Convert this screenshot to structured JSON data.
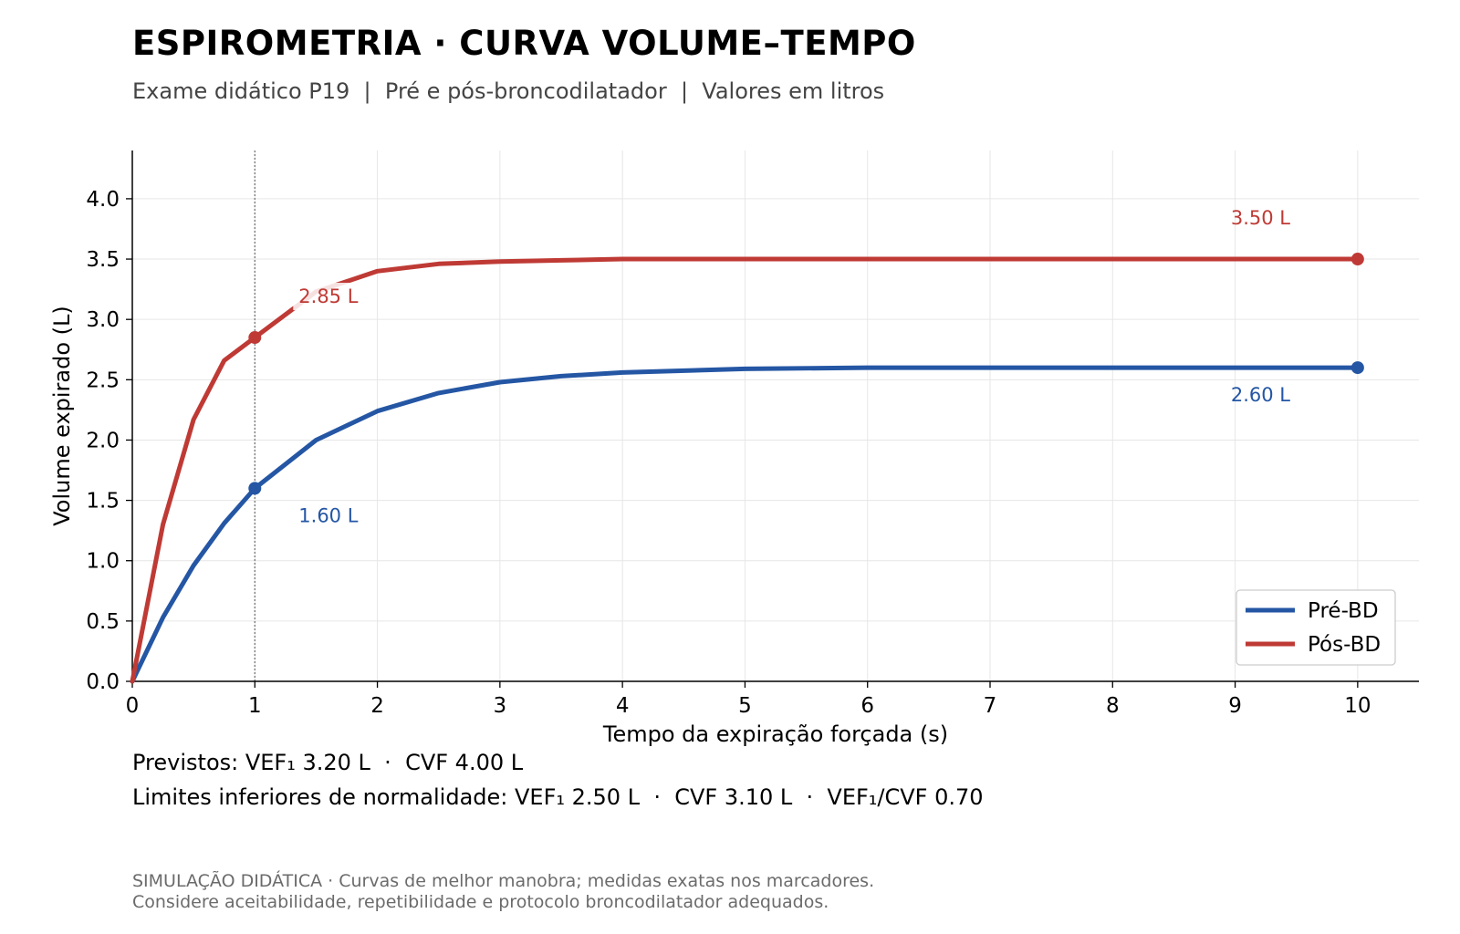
{
  "header": {
    "title": "ESPIROMETRIA · CURVA VOLUME–TEMPO",
    "subtitle": "Exame didático P19  |  Pré e pós-broncodilatador  |  Valores em litros"
  },
  "chart_data": {
    "type": "line",
    "xlabel": "Tempo da expiração forçada (s)",
    "ylabel": "Volume expirado (L)",
    "xlim": [
      0,
      10.5
    ],
    "ylim": [
      0,
      4.4
    ],
    "x_ticks": [
      "0",
      "1",
      "2",
      "3",
      "4",
      "5",
      "6",
      "7",
      "8",
      "9",
      "10"
    ],
    "y_ticks": [
      "0.0",
      "0.5",
      "1.0",
      "1.5",
      "2.0",
      "2.5",
      "3.0",
      "3.5",
      "4.0"
    ],
    "grid": true,
    "legend_position": "bottom-right",
    "reference_line_x": 1,
    "series": [
      {
        "name": "Pré-BD",
        "color": "#2456a4",
        "x": [
          0,
          0.25,
          0.5,
          0.75,
          1,
          1.5,
          2,
          2.5,
          3,
          3.5,
          4,
          5,
          6,
          7,
          8,
          9,
          10
        ],
        "y": [
          0,
          0.53,
          0.96,
          1.31,
          1.6,
          2.0,
          2.24,
          2.39,
          2.48,
          2.53,
          2.56,
          2.59,
          2.6,
          2.6,
          2.6,
          2.6,
          2.6
        ],
        "markers": [
          {
            "x": 1,
            "y": 1.6,
            "label": "1.60 L"
          },
          {
            "x": 10,
            "y": 2.6,
            "label": "2.60 L"
          }
        ]
      },
      {
        "name": "Pós-BD",
        "color": "#bf3a35",
        "x": [
          0,
          0.25,
          0.5,
          0.75,
          1,
          1.5,
          2,
          2.5,
          3,
          3.5,
          4,
          5,
          6,
          7,
          8,
          9,
          10
        ],
        "y": [
          0,
          1.3,
          2.17,
          2.66,
          2.85,
          3.23,
          3.4,
          3.46,
          3.48,
          3.49,
          3.5,
          3.5,
          3.5,
          3.5,
          3.5,
          3.5,
          3.5
        ],
        "markers": [
          {
            "x": 1,
            "y": 2.85,
            "label": "2.85 L"
          },
          {
            "x": 10,
            "y": 3.5,
            "label": "3.50 L"
          }
        ]
      }
    ]
  },
  "notes": {
    "predicted": "Previstos: VEF₁ 3.20 L  ·  CVF 4.00 L",
    "lower_limits": "Limites inferiores de normalidade: VEF₁ 2.50 L  ·  CVF 3.10 L  ·  VEF₁/CVF 0.70"
  },
  "footer": {
    "line1": "SIMULAÇÃO DIDÁTICA · Curvas de melhor manobra; medidas exatas nos marcadores.",
    "line2": "Considere aceitabilidade, repetibilidade e protocolo broncodilatador adequados."
  }
}
